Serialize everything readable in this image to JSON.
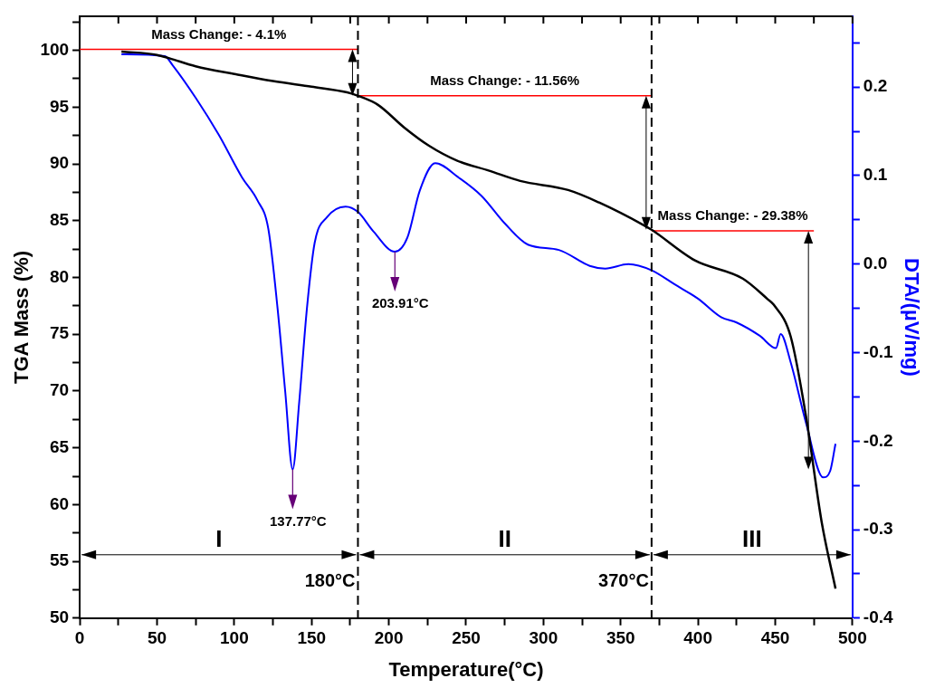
{
  "chart_data": {
    "type": "line",
    "xlabel": "Temperature(°C)",
    "ylabel": "TGA Mass (%)",
    "y2label": "DTA/(µV/mg)",
    "xlim": [
      0,
      500
    ],
    "xticks": [
      0,
      {
        "value": 25,
        "label": null
      },
      50,
      {
        "value": 75,
        "label": null
      },
      100,
      {
        "value": 125,
        "label": null
      },
      150,
      {
        "value": 175,
        "label": null
      },
      200,
      {
        "value": 225,
        "label": null
      },
      250,
      {
        "value": 275,
        "label": null
      },
      300,
      {
        "value": 325,
        "label": null
      },
      350,
      {
        "value": 375,
        "label": null
      },
      400,
      {
        "value": 425,
        "label": null
      },
      450,
      {
        "value": 475,
        "label": null
      },
      500
    ],
    "ylim": [
      50,
      103
    ],
    "yticks": [
      50,
      {
        "value": 52.5,
        "label": null
      },
      55,
      {
        "value": 57.5,
        "label": null
      },
      60,
      {
        "value": 62.5,
        "label": null
      },
      65,
      {
        "value": 67.5,
        "label": null
      },
      70,
      {
        "value": 72.5,
        "label": null
      },
      75,
      {
        "value": 77.5,
        "label": null
      },
      80,
      {
        "value": 82.5,
        "label": null
      },
      85,
      {
        "value": 87.5,
        "label": null
      },
      90,
      {
        "value": 92.5,
        "label": null
      },
      95,
      {
        "value": 97.5,
        "label": null
      },
      100,
      {
        "value": 102.5,
        "label": null
      }
    ],
    "y2lim": [
      -0.4,
      0.28
    ],
    "y2ticks": [
      {
        "value": -0.4,
        "label": "-0.4"
      },
      {
        "value": -0.35,
        "label": null
      },
      {
        "value": -0.3,
        "label": "-0.3"
      },
      {
        "value": -0.25,
        "label": null
      },
      {
        "value": -0.2,
        "label": "-0.2"
      },
      {
        "value": -0.15,
        "label": null
      },
      {
        "value": -0.1,
        "label": "-0.1"
      },
      {
        "value": -0.05,
        "label": null
      },
      {
        "value": 0,
        "label": "0.0"
      },
      {
        "value": 0.05,
        "label": null
      },
      {
        "value": 0.1,
        "label": "0.1"
      },
      {
        "value": 0.15,
        "label": null
      },
      {
        "value": 0.2,
        "label": "0.2"
      },
      {
        "value": 0.25,
        "label": null
      }
    ],
    "series": [
      {
        "color": "#000000",
        "x": [
          27,
          50,
          58,
          75,
          101,
          125,
          150,
          173,
          180,
          193,
          210,
          226,
          244,
          265,
          285,
          316,
          336,
          365,
          370,
          398,
          429,
          445,
          449,
          460,
          470,
          480,
          489
        ],
        "values": [
          99.9,
          99.6,
          99.3,
          98.6,
          97.9,
          97.3,
          96.8,
          96.3,
          96.0,
          95.2,
          93.2,
          91.6,
          90.3,
          89.4,
          88.5,
          87.7,
          86.6,
          84.6,
          84.2,
          81.5,
          79.9,
          78.1,
          77.6,
          74.8,
          67.7,
          58.5,
          52.6
        ]
      },
      {
        "color": "#0000ff",
        "axis": "y2",
        "x": [
          27,
          55,
          60,
          75,
          90,
          105,
          115,
          122,
          128,
          133,
          137.77,
          142,
          147,
          152,
          160,
          172,
          180,
          190,
          203.91,
          212,
          220,
          230,
          245,
          260,
          275,
          290,
          310,
          330,
          340,
          355,
          370,
          385,
          400,
          415,
          425,
          440,
          450.5,
          453.5,
          460,
          470,
          481,
          485.5,
          489
        ],
        "values": [
          0.237,
          0.235,
          0.225,
          0.188,
          0.146,
          0.098,
          0.072,
          0.04,
          -0.05,
          -0.145,
          -0.232,
          -0.156,
          -0.05,
          0.024,
          0.053,
          0.065,
          0.059,
          0.037,
          0.014,
          0.03,
          0.083,
          0.114,
          0.098,
          0.077,
          0.046,
          0.022,
          0.016,
          -0.002,
          -0.005,
          0.0,
          -0.007,
          -0.023,
          -0.039,
          -0.06,
          -0.066,
          -0.081,
          -0.095,
          -0.079,
          -0.111,
          -0.18,
          -0.241,
          -0.234,
          -0.203
        ]
      },
      {
        "color": "#ff0000",
        "x": [
          0,
          180
        ],
        "values": [
          100.1,
          100.1
        ]
      },
      {
        "color": "#ff0000",
        "x": [
          180,
          370
        ],
        "values": [
          96.0,
          96.0
        ]
      },
      {
        "color": "#ff0000",
        "x": [
          370,
          475
        ],
        "values": [
          84.1,
          84.1
        ]
      }
    ],
    "ref_lines": [
      {
        "axis": "x",
        "value": 180,
        "label": "180°C",
        "color": "#000000",
        "line_style": "dashed"
      },
      {
        "axis": "x",
        "value": 370,
        "label": "370°C",
        "color": "#000000",
        "line_style": "dashed"
      }
    ],
    "annotations": [
      {
        "text": "Mass Change: - 4.1%",
        "x": 90,
        "y": 100.1
      },
      {
        "text": "Mass Change: - 11.56%",
        "x": 275,
        "y": 96.0
      },
      {
        "text": "Mass Change: - 29.38%",
        "x": 422.5,
        "y": 84.1
      },
      "137.77°C",
      "203.91°C",
      "I",
      "II",
      "III"
    ],
    "grid": false,
    "legend": false
  }
}
